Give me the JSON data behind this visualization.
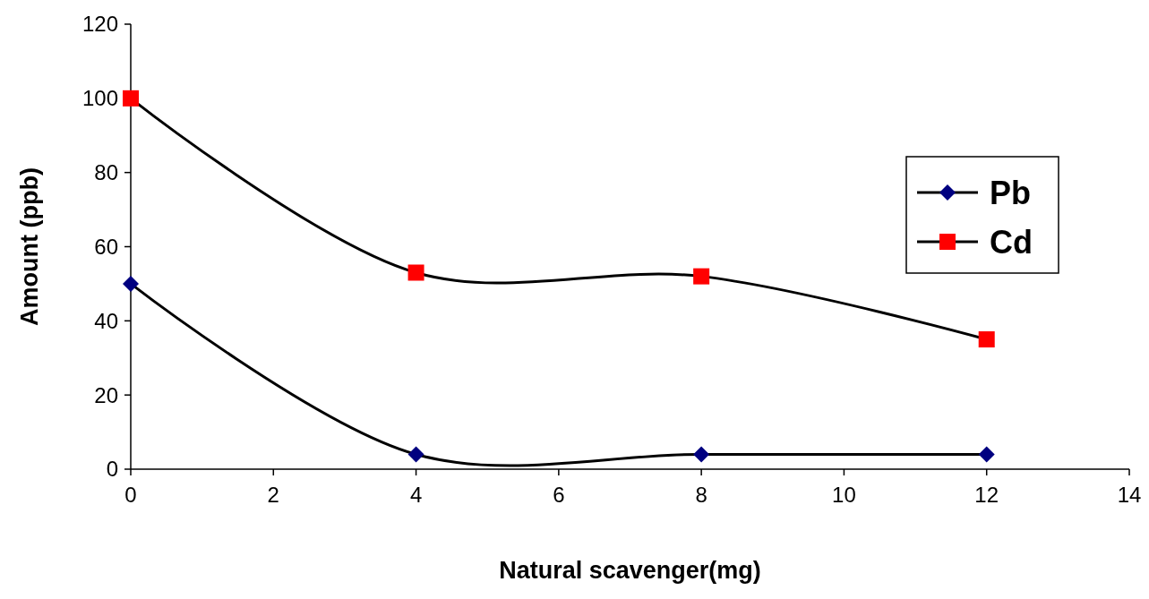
{
  "chart_data": {
    "type": "line",
    "xlabel": "Natural scavenger(mg)",
    "ylabel": "Amount (ppb)",
    "x": [
      0,
      4,
      8,
      12
    ],
    "series": [
      {
        "name": "Pb",
        "color": "#000080",
        "marker": "diamond",
        "values": [
          50,
          4,
          4,
          4
        ]
      },
      {
        "name": "Cd",
        "color": "#ff0000",
        "marker": "square",
        "values": [
          100,
          53,
          52,
          35
        ]
      }
    ],
    "xlim": [
      0,
      14
    ],
    "xticks": [
      0,
      2,
      4,
      6,
      8,
      10,
      12,
      14
    ],
    "ylim": [
      0,
      120
    ],
    "yticks": [
      0,
      20,
      40,
      60,
      80,
      100,
      120
    ],
    "grid": false,
    "legend": "right"
  }
}
